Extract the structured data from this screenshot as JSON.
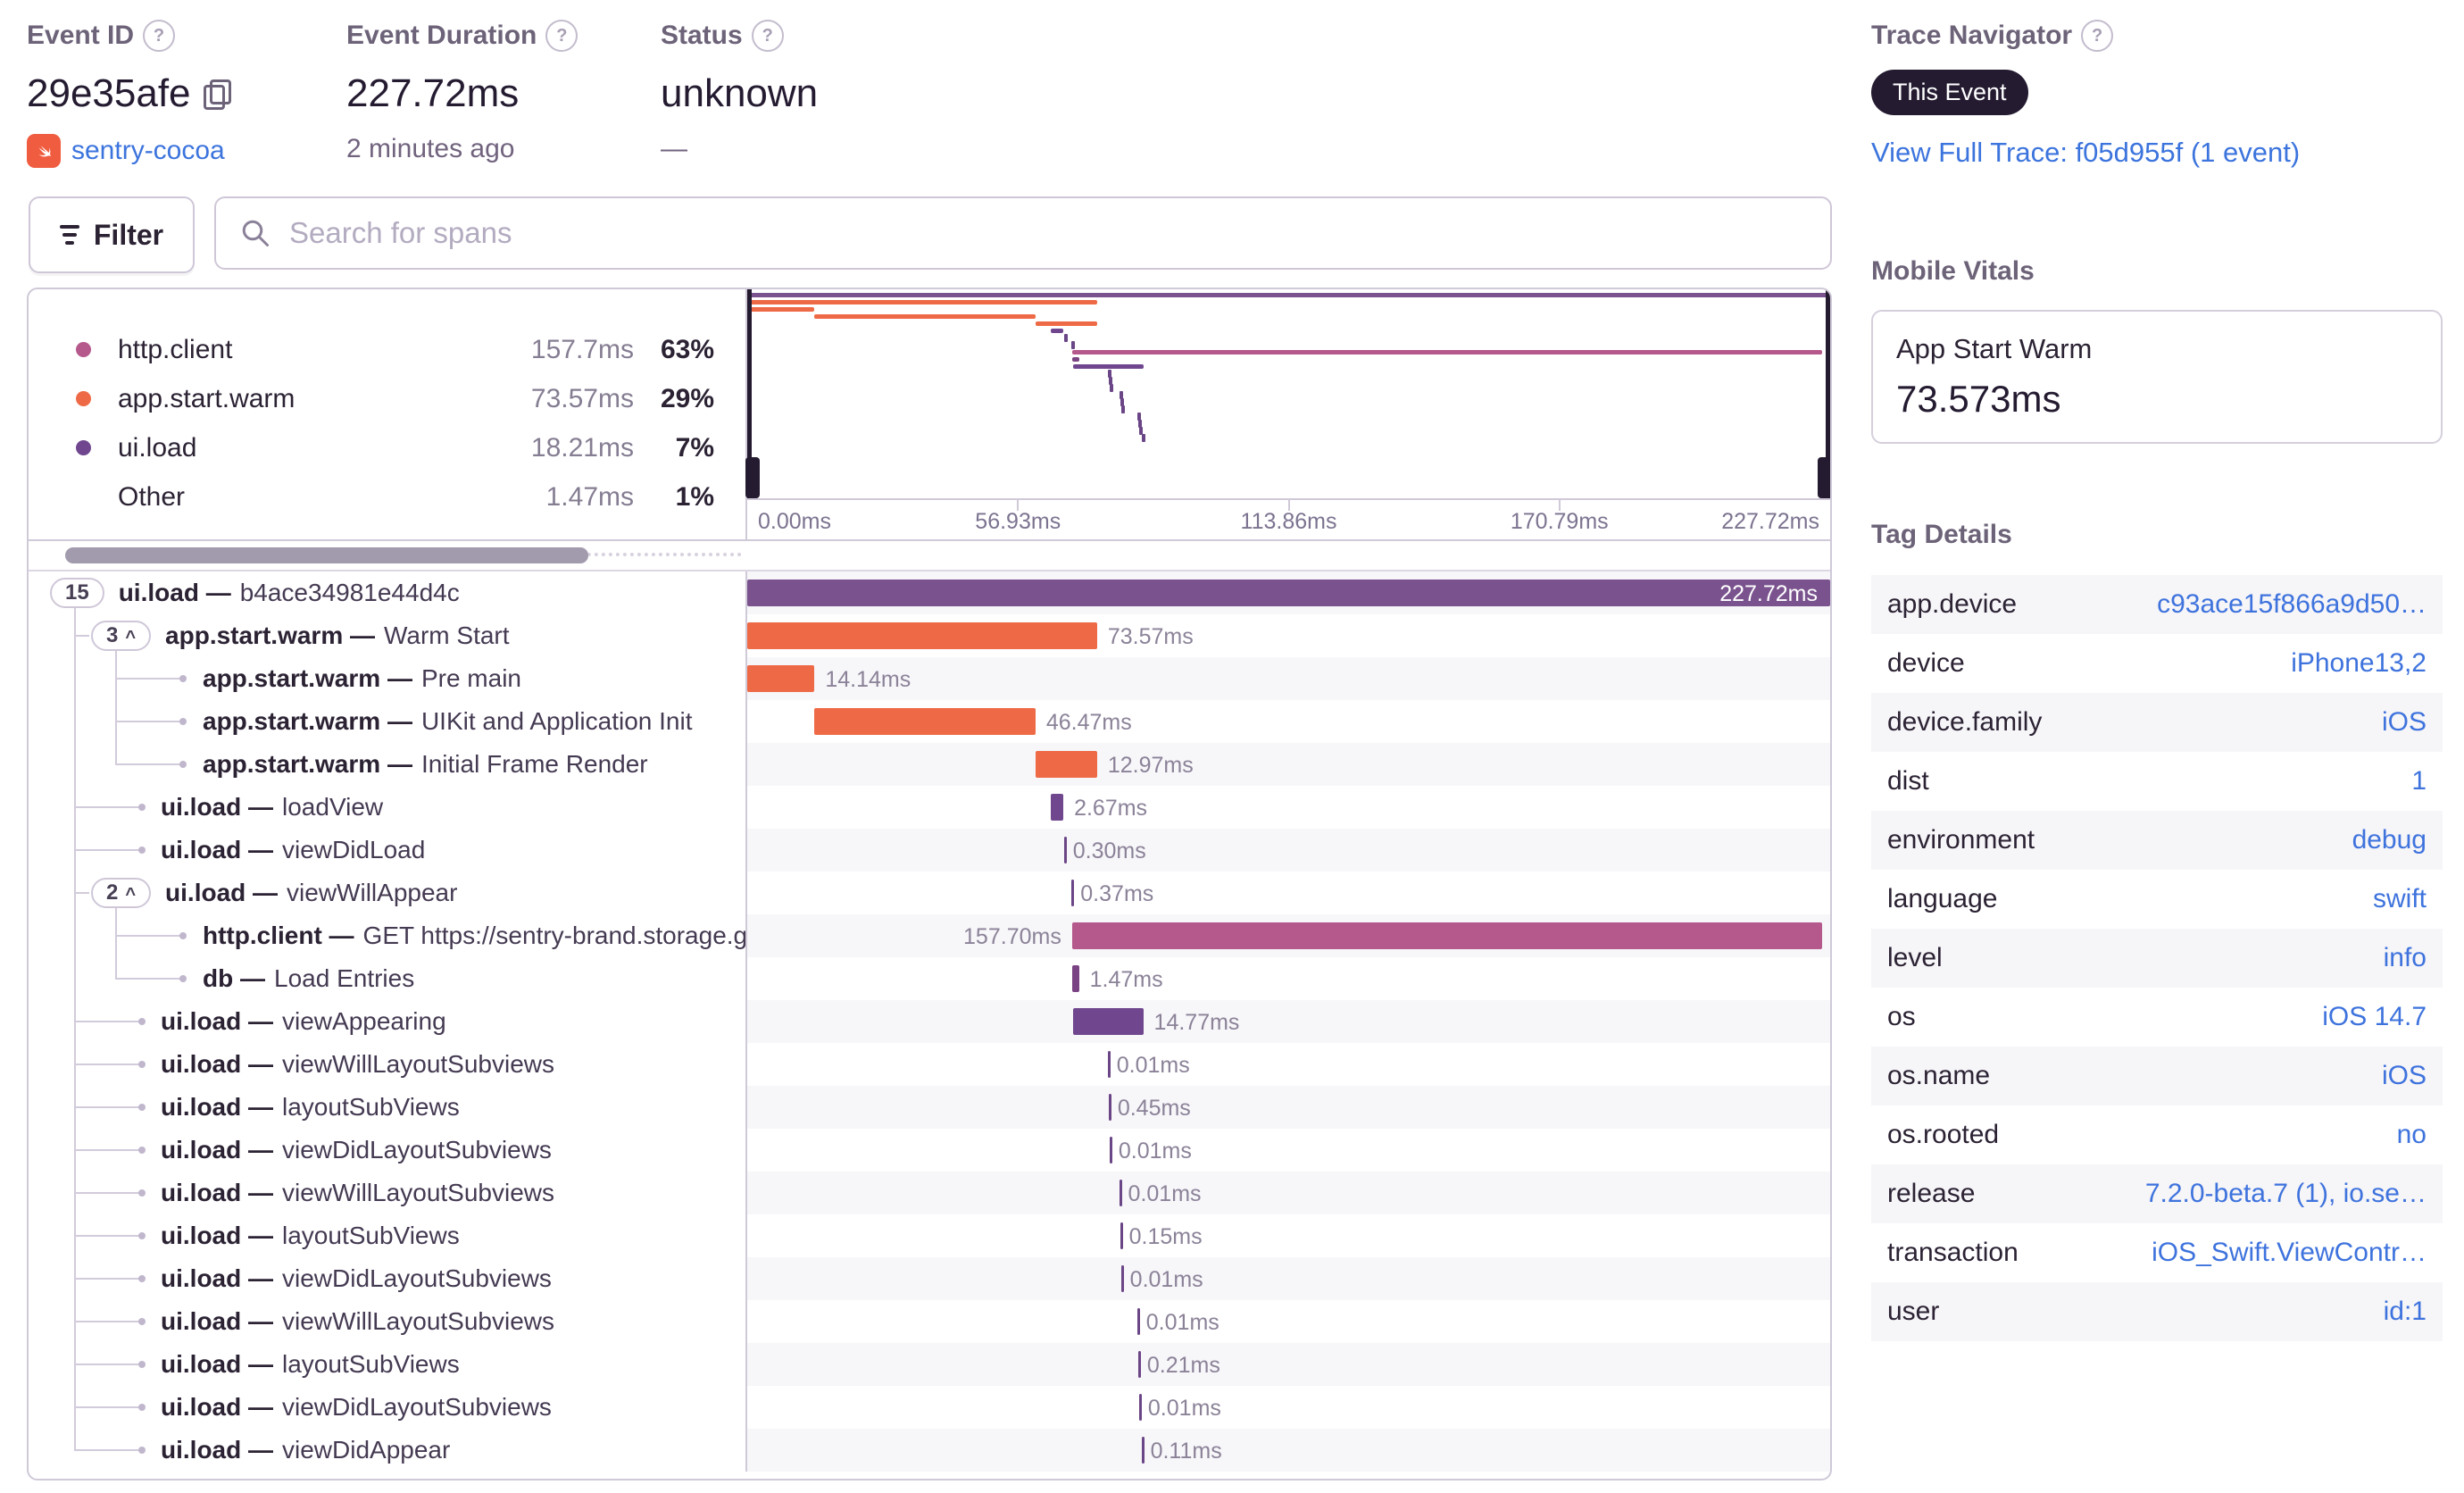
{
  "header": {
    "event_id": {
      "label": "Event ID",
      "value": "29e35afe",
      "project": "sentry-cocoa"
    },
    "duration": {
      "label": "Event Duration",
      "value": "227.72ms",
      "ago": "2 minutes ago"
    },
    "status": {
      "label": "Status",
      "value": "unknown",
      "sub": "—"
    },
    "trace": {
      "label": "Trace Navigator",
      "badge": "This Event",
      "link": "View Full Trace: f05d955f (1 event)"
    }
  },
  "toolbar": {
    "filter_label": "Filter",
    "search_placeholder": "Search for spans"
  },
  "legend": {
    "items": [
      {
        "name": "http.client",
        "duration": "157.7ms",
        "pct": "63%",
        "color": "#b5588c"
      },
      {
        "name": "app.start.warm",
        "duration": "73.57ms",
        "pct": "29%",
        "color": "#ee6a46"
      },
      {
        "name": "ui.load",
        "duration": "18.21ms",
        "pct": "7%",
        "color": "#70478f"
      },
      {
        "name": "Other",
        "duration": "1.47ms",
        "pct": "1%",
        "color": null
      }
    ]
  },
  "minimap": {
    "axis": [
      "0.00ms",
      "56.93ms",
      "113.86ms",
      "170.79ms",
      "227.72ms"
    ],
    "total_ms": 227.72
  },
  "colors": {
    "root": "#7a538e",
    "orange": "#ee6a46",
    "purple": "#70478f",
    "pink": "#b5588c",
    "plum": "#7a4383",
    "line": "#6b4687"
  },
  "spans": [
    {
      "badge": "15",
      "chevron": false,
      "op": "ui.load",
      "desc": "b4ace34981e44d4c",
      "level": 0,
      "duration": "227.72ms",
      "start": 0,
      "ms": 227.72,
      "color": "root",
      "label_pos": "inside",
      "line": false
    },
    {
      "badge": "3",
      "chevron": true,
      "op": "app.start.warm",
      "desc": "Warm Start",
      "level": 1,
      "duration": "73.57ms",
      "start": 0,
      "ms": 73.57,
      "color": "orange",
      "label_pos": "right",
      "line": false
    },
    {
      "badge": null,
      "op": "app.start.warm",
      "desc": "Pre main",
      "level": 2,
      "duration": "14.14ms",
      "start": 0,
      "ms": 14.14,
      "color": "orange",
      "label_pos": "right",
      "line": false
    },
    {
      "badge": null,
      "op": "app.start.warm",
      "desc": "UIKit and Application Init",
      "level": 2,
      "duration": "46.47ms",
      "start": 14.14,
      "ms": 46.47,
      "color": "orange",
      "label_pos": "right",
      "line": false
    },
    {
      "badge": null,
      "op": "app.start.warm",
      "desc": "Initial Frame Render",
      "level": 2,
      "duration": "12.97ms",
      "start": 60.6,
      "ms": 12.97,
      "color": "orange",
      "label_pos": "right",
      "line": false
    },
    {
      "badge": null,
      "op": "ui.load",
      "desc": "loadView",
      "level": 1,
      "duration": "2.67ms",
      "start": 63.8,
      "ms": 2.67,
      "color": "purple",
      "label_pos": "right",
      "line": false
    },
    {
      "badge": null,
      "op": "ui.load",
      "desc": "viewDidLoad",
      "level": 1,
      "duration": "0.30ms",
      "start": 66.6,
      "ms": 0.3,
      "color": "line",
      "label_pos": "right",
      "line": true
    },
    {
      "badge": "2",
      "chevron": true,
      "op": "ui.load",
      "desc": "viewWillAppear",
      "level": 1,
      "duration": "0.37ms",
      "start": 68.2,
      "ms": 0.37,
      "color": "line",
      "label_pos": "right",
      "line": true
    },
    {
      "badge": null,
      "op": "http.client",
      "desc": "GET https://sentry-brand.storage.googleapis.com/sentry-logos/sentry-wordmark-dark.png",
      "level": 2,
      "duration": "157.70ms",
      "start": 68.3,
      "ms": 157.7,
      "color": "pink",
      "label_pos": "left",
      "line": false
    },
    {
      "badge": null,
      "op": "db",
      "desc": "Load Entries",
      "level": 2,
      "duration": "1.47ms",
      "start": 68.3,
      "ms": 1.47,
      "color": "plum",
      "label_pos": "right",
      "line": false
    },
    {
      "badge": null,
      "op": "ui.load",
      "desc": "viewAppearing",
      "level": 1,
      "duration": "14.77ms",
      "start": 68.5,
      "ms": 14.77,
      "color": "purple",
      "label_pos": "right",
      "line": false
    },
    {
      "badge": null,
      "op": "ui.load",
      "desc": "viewWillLayoutSubviews",
      "level": 1,
      "duration": "0.01ms",
      "start": 75.8,
      "ms": 0.01,
      "color": "line",
      "label_pos": "right",
      "line": true
    },
    {
      "badge": null,
      "op": "ui.load",
      "desc": "layoutSubViews",
      "level": 1,
      "duration": "0.45ms",
      "start": 76.0,
      "ms": 0.45,
      "color": "line",
      "label_pos": "right",
      "line": true
    },
    {
      "badge": null,
      "op": "ui.load",
      "desc": "viewDidLayoutSubviews",
      "level": 1,
      "duration": "0.01ms",
      "start": 76.2,
      "ms": 0.01,
      "color": "line",
      "label_pos": "right",
      "line": true
    },
    {
      "badge": null,
      "op": "ui.load",
      "desc": "viewWillLayoutSubviews",
      "level": 1,
      "duration": "0.01ms",
      "start": 78.2,
      "ms": 0.01,
      "color": "line",
      "label_pos": "right",
      "line": true
    },
    {
      "badge": null,
      "op": "ui.load",
      "desc": "layoutSubViews",
      "level": 1,
      "duration": "0.15ms",
      "start": 78.4,
      "ms": 0.15,
      "color": "line",
      "label_pos": "right",
      "line": true
    },
    {
      "badge": null,
      "op": "ui.load",
      "desc": "viewDidLayoutSubviews",
      "level": 1,
      "duration": "0.01ms",
      "start": 78.6,
      "ms": 0.01,
      "color": "line",
      "label_pos": "right",
      "line": true
    },
    {
      "badge": null,
      "op": "ui.load",
      "desc": "viewWillLayoutSubviews",
      "level": 1,
      "duration": "0.01ms",
      "start": 82.0,
      "ms": 0.01,
      "color": "line",
      "label_pos": "right",
      "line": true
    },
    {
      "badge": null,
      "op": "ui.load",
      "desc": "layoutSubViews",
      "level": 1,
      "duration": "0.21ms",
      "start": 82.2,
      "ms": 0.21,
      "color": "line",
      "label_pos": "right",
      "line": true
    },
    {
      "badge": null,
      "op": "ui.load",
      "desc": "viewDidLayoutSubviews",
      "level": 1,
      "duration": "0.01ms",
      "start": 82.4,
      "ms": 0.01,
      "color": "line",
      "label_pos": "right",
      "line": true
    },
    {
      "badge": null,
      "op": "ui.load",
      "desc": "viewDidAppear",
      "level": 1,
      "duration": "0.11ms",
      "start": 82.9,
      "ms": 0.11,
      "color": "line",
      "label_pos": "right",
      "line": true
    }
  ],
  "sidebar": {
    "vitals": {
      "title": "Mobile Vitals",
      "card_label": "App Start Warm",
      "card_value": "73.573ms"
    },
    "tags": {
      "title": "Tag Details",
      "rows": [
        {
          "key": "app.device",
          "value": "c93ace15f866a9d50…"
        },
        {
          "key": "device",
          "value": "iPhone13,2"
        },
        {
          "key": "device.family",
          "value": "iOS"
        },
        {
          "key": "dist",
          "value": "1"
        },
        {
          "key": "environment",
          "value": "debug"
        },
        {
          "key": "language",
          "value": "swift"
        },
        {
          "key": "level",
          "value": "info"
        },
        {
          "key": "os",
          "value": "iOS 14.7"
        },
        {
          "key": "os.name",
          "value": "iOS"
        },
        {
          "key": "os.rooted",
          "value": "no"
        },
        {
          "key": "release",
          "value": "7.2.0-beta.7 (1), io.se…"
        },
        {
          "key": "transaction",
          "value": "iOS_Swift.ViewContr…"
        },
        {
          "key": "user",
          "value": "id:1"
        }
      ]
    }
  }
}
